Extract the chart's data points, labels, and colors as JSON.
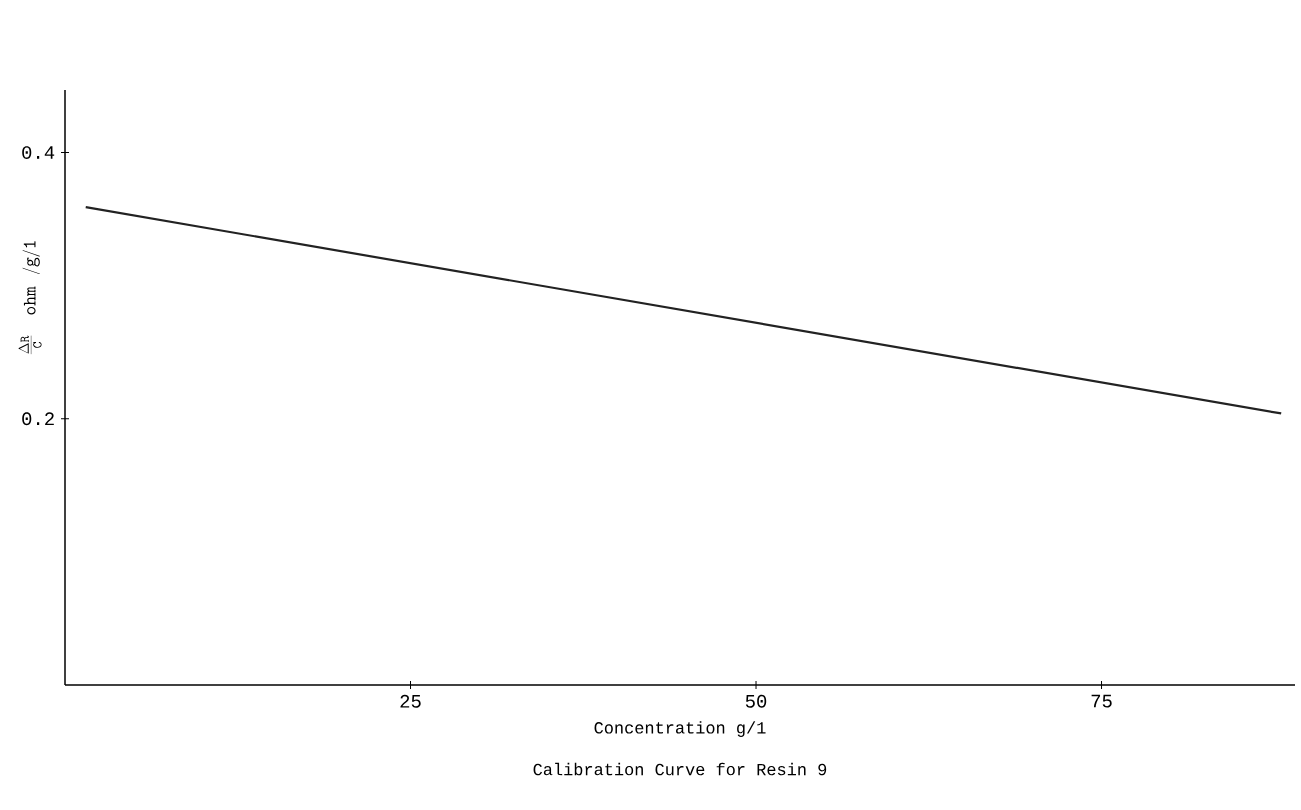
{
  "chart_data": {
    "type": "line",
    "title": "Calibration Curve for Resin 9",
    "xlabel": "Concentration g/1",
    "ylabel": "\\frac{\\Delta \\mathtt{R}}{\\mathtt{C}}\\quad \\mathtt{ohm\\ /g/1}",
    "series": [
      {
        "color": "#222222",
        "x": [
          1.5,
          88
        ],
        "values": [
          0.359,
          0.204
        ]
      }
    ],
    "xlim": [
      0,
      89
    ],
    "ylim": [
      0,
      0.447
    ],
    "xticks": [
      25,
      50,
      75
    ],
    "yticks": [
      0.2,
      0.4
    ],
    "grid": false,
    "marker": "none",
    "line_style": "solid"
  }
}
